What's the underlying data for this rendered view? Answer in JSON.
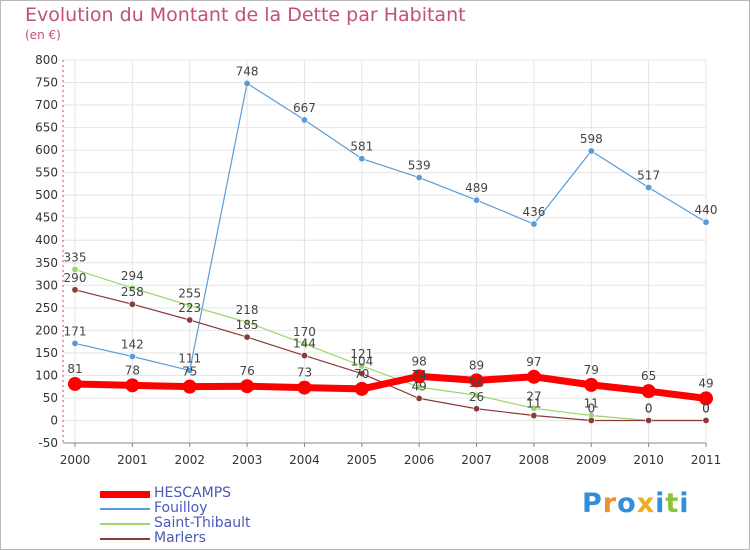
{
  "title": "Evolution du Montant de la Dette par Habitant",
  "unit": "(en €)",
  "logo": {
    "text": "Proxiti",
    "colors": [
      "#2f8fd8",
      "#f0922b",
      "#2f8fd8",
      "#e8b020",
      "#2f8fd8",
      "#8ac43f",
      "#2f8fd8"
    ]
  },
  "chart_data": {
    "type": "line",
    "title": "Evolution du Montant de la Dette par Habitant",
    "ylabel": "(en €)",
    "xlabel": "",
    "x": [
      "2000",
      "2001",
      "2002",
      "2003",
      "2004",
      "2005",
      "2006",
      "2007",
      "2008",
      "2009",
      "2010",
      "2011"
    ],
    "ylim": [
      -50,
      800
    ],
    "yticks": [
      "-50",
      "0",
      "50",
      "100",
      "150",
      "200",
      "250",
      "300",
      "350",
      "400",
      "450",
      "500",
      "550",
      "600",
      "650",
      "700",
      "750",
      "800"
    ],
    "ytick_values": [
      -50,
      0,
      50,
      100,
      150,
      200,
      250,
      300,
      350,
      400,
      450,
      500,
      550,
      600,
      650,
      700,
      750,
      800
    ],
    "grid": true,
    "legend_position": "bottom-left",
    "series": [
      {
        "name": "Fouilloy",
        "color": "#5b9bd5",
        "emphasis": false,
        "values": [
          171,
          142,
          111,
          748,
          667,
          581,
          539,
          489,
          436,
          598,
          517,
          440
        ],
        "labels": [
          "171",
          "142",
          "111",
          "748",
          "667",
          "581",
          "539",
          "489",
          "436",
          "598",
          "517",
          "440"
        ]
      },
      {
        "name": "Saint-Thibault",
        "color": "#9bd66a",
        "emphasis": false,
        "values": [
          335,
          294,
          255,
          218,
          170,
          121,
          74,
          56,
          27,
          11,
          0,
          0
        ],
        "labels": [
          "335",
          "294",
          "255",
          "218",
          "170",
          "121",
          "74",
          "56",
          "27",
          "11",
          "0",
          "0"
        ]
      },
      {
        "name": "Marlers",
        "color": "#8b3a3a",
        "emphasis": false,
        "values": [
          290,
          258,
          223,
          185,
          144,
          104,
          49,
          26,
          11,
          0,
          0,
          0
        ],
        "labels": [
          "290",
          "258",
          "223",
          "185",
          "144",
          "104",
          "49",
          "26",
          "11",
          "0",
          "0",
          "0"
        ]
      },
      {
        "name": "HESCAMPS",
        "color": "#ff0000",
        "emphasis": true,
        "values": [
          81,
          78,
          75,
          76,
          73,
          70,
          98,
          89,
          97,
          79,
          65,
          49
        ],
        "labels": [
          "81",
          "78",
          "75",
          "76",
          "73",
          "70",
          "98",
          "89",
          "97",
          "79",
          "65",
          "49"
        ]
      }
    ],
    "legend": [
      {
        "name": "HESCAMPS",
        "color": "#ff0000",
        "thick": true
      },
      {
        "name": "Fouilloy",
        "color": "#5b9bd5",
        "thick": false
      },
      {
        "name": "Saint-Thibault",
        "color": "#9bd66a",
        "thick": false
      },
      {
        "name": "Marlers",
        "color": "#8b3a3a",
        "thick": false
      }
    ]
  }
}
